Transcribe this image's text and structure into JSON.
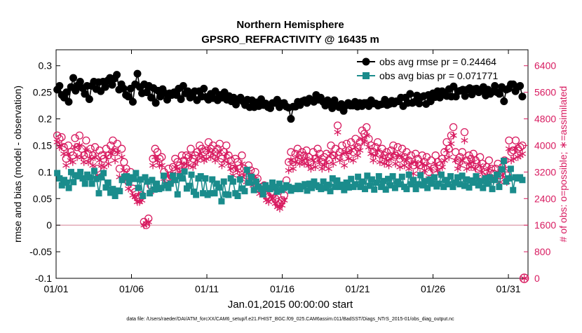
{
  "chart_data": {
    "type": "line",
    "title": "Northern Hemisphere",
    "subtitle": "GPSRO_REFRACTIVITY @ 16435 m",
    "xlabel": "Jan.01,2015 00:00:00 start",
    "ylabel_left": "rmse and bias (model - observation)",
    "ylabel_right": "# of obs: o=possible; ∗=assimilated",
    "footer": "data file: /Users/raeder/DAI/ATM_forcXX/CAM6_setup/f.e21.FHIST_BGC.f09_025.CAM6assim.011/BadSST/Diags_NTrS_2015-01/obs_diag_output.nc",
    "x_ticks": [
      "01/01",
      "01/06",
      "01/11",
      "01/16",
      "01/21",
      "01/26",
      "01/31"
    ],
    "y_left_ticks": [
      "-0.1",
      "-0.05",
      "0",
      "0.05",
      "0.1",
      "0.15",
      "0.2",
      "0.25",
      "0.3"
    ],
    "y_right_ticks": [
      "0",
      "800",
      "1600",
      "2400",
      "3200",
      "4000",
      "4800",
      "5600",
      "6400"
    ],
    "xlim_days": [
      0,
      31.3
    ],
    "ylim_left": [
      -0.1,
      0.33
    ],
    "ylim_right": [
      0,
      6880
    ],
    "grid": false,
    "legend_position": "top-right",
    "colors": {
      "rmse": "#000000",
      "bias": "#1a8c8c",
      "obs": "#d81b60",
      "zero_line": "#d98fa0"
    },
    "series": [
      {
        "name": "obs avg rmse pr = 0.24464",
        "axis": "left",
        "marker": "filled-circle",
        "values": [
          0.255,
          0.262,
          0.245,
          0.24,
          0.25,
          0.232,
          0.26,
          0.277,
          0.253,
          0.263,
          0.27,
          0.258,
          0.247,
          0.262,
          0.237,
          0.262,
          0.27,
          0.256,
          0.269,
          0.252,
          0.27,
          0.26,
          0.272,
          0.277,
          0.264,
          0.276,
          0.283,
          0.255,
          0.265,
          0.257,
          0.245,
          0.242,
          0.257,
          0.232,
          0.265,
          0.285,
          0.26,
          0.248,
          0.265,
          0.25,
          0.262,
          0.24,
          0.258,
          0.23,
          0.253,
          0.242,
          0.256,
          0.248,
          0.236,
          0.248,
          0.245,
          0.25,
          0.245,
          0.257,
          0.237,
          0.262,
          0.248,
          0.252,
          0.24,
          0.245,
          0.252,
          0.235,
          0.252,
          0.242,
          0.257,
          0.241,
          0.236,
          0.247,
          0.239,
          0.252,
          0.235,
          0.245,
          0.24,
          0.25,
          0.236,
          0.243,
          0.233,
          0.24,
          0.227,
          0.236,
          0.24,
          0.233,
          0.226,
          0.236,
          0.222,
          0.235,
          0.222,
          0.231,
          0.224,
          0.237,
          0.226,
          0.229,
          0.222,
          0.22,
          0.23,
          0.23,
          0.236,
          0.222,
          0.229,
          0.23,
          0.223,
          0.221,
          0.2,
          0.223,
          0.223,
          0.232,
          0.226,
          0.233,
          0.235,
          0.23,
          0.238,
          0.235,
          0.232,
          0.245,
          0.236,
          0.24,
          0.232,
          0.225,
          0.235,
          0.23,
          0.22,
          0.235,
          0.225,
          0.222,
          0.228,
          0.215,
          0.225,
          0.23,
          0.225,
          0.225,
          0.232,
          0.223,
          0.23,
          0.224,
          0.23,
          0.23,
          0.224,
          0.235,
          0.229,
          0.229,
          0.225,
          0.227,
          0.228,
          0.236,
          0.226,
          0.228,
          0.234,
          0.229,
          0.233,
          0.233,
          0.24,
          0.224,
          0.24,
          0.23,
          0.247,
          0.23,
          0.232,
          0.244,
          0.229,
          0.241,
          0.243,
          0.228,
          0.245,
          0.233,
          0.248,
          0.241,
          0.252,
          0.24,
          0.252,
          0.247,
          0.243,
          0.256,
          0.242,
          0.261,
          0.242,
          0.252,
          0.253,
          0.255,
          0.243,
          0.255,
          0.258,
          0.246,
          0.256,
          0.257,
          0.25,
          0.253,
          0.26,
          0.244,
          0.255,
          0.247,
          0.251,
          0.262,
          0.25,
          0.247,
          0.26,
          0.233,
          0.255,
          0.257,
          0.265,
          0.265,
          0.252,
          0.26,
          0.262,
          0.242
        ]
      },
      {
        "name": "obs avg bias pr = 0.071771",
        "axis": "left",
        "marker": "filled-square",
        "values": [
          0.098,
          0.088,
          0.075,
          0.085,
          0.08,
          0.07,
          0.1,
          0.081,
          0.094,
          0.092,
          0.1,
          0.088,
          0.078,
          0.095,
          0.09,
          0.078,
          0.102,
          0.087,
          0.06,
          0.09,
          0.098,
          0.071,
          0.08,
          0.061,
          0.068,
          0.055,
          0.065,
          0.064,
          0.085,
          0.091,
          0.092,
          0.08,
          0.09,
          0.087,
          0.098,
          0.07,
          0.086,
          0.055,
          0.09,
          0.082,
          0.06,
          0.085,
          0.067,
          0.078,
          0.068,
          0.07,
          0.093,
          0.075,
          0.07,
          0.078,
          0.093,
          0.085,
          0.058,
          0.092,
          0.088,
          0.101,
          0.069,
          0.074,
          0.095,
          0.063,
          0.057,
          0.088,
          0.092,
          0.06,
          0.088,
          0.057,
          0.06,
          0.086,
          0.06,
          0.078,
          0.071,
          0.045,
          0.082,
          0.058,
          0.057,
          0.088,
          0.082,
          0.06,
          0.055,
          0.086,
          0.069,
          0.064,
          0.104,
          0.08,
          0.091,
          0.066,
          0.082,
          0.072,
          0.068,
          0.058,
          0.075,
          0.07,
          0.068,
          0.08,
          0.072,
          0.063,
          0.078,
          0.066,
          0.07,
          0.075,
          0.072,
          0.065,
          0.07,
          0.068,
          0.074,
          0.068,
          0.073,
          0.077,
          0.065,
          0.078,
          0.07,
          0.082,
          0.075,
          0.072,
          0.068,
          0.082,
          0.07,
          0.076,
          0.064,
          0.088,
          0.072,
          0.084,
          0.072,
          0.076,
          0.066,
          0.08,
          0.071,
          0.087,
          0.072,
          0.077,
          0.091,
          0.072,
          0.082,
          0.068,
          0.093,
          0.074,
          0.086,
          0.067,
          0.08,
          0.092,
          0.072,
          0.083,
          0.067,
          0.087,
          0.075,
          0.092,
          0.07,
          0.082,
          0.077,
          0.091,
          0.072,
          0.068,
          0.095,
          0.077,
          0.085,
          0.068,
          0.077,
          0.094,
          0.075,
          0.083,
          0.07,
          0.086,
          0.078,
          0.09,
          0.073,
          0.078,
          0.095,
          0.072,
          0.085,
          0.077,
          0.092,
          0.072,
          0.08,
          0.09,
          0.077,
          0.093,
          0.074,
          0.086,
          0.071,
          0.084,
          0.08,
          0.092,
          0.075,
          0.083,
          0.07,
          0.088,
          0.078,
          0.09,
          0.068,
          0.085,
          0.095,
          0.072,
          0.105,
          0.121,
          0.082,
          0.088,
          0.106,
          0.066,
          0.09,
          0.088,
          0.09,
          0.085
        ]
      },
      {
        "name": "possible",
        "axis": "right",
        "marker": "open-circle",
        "values": [
          4300,
          4200,
          4250,
          3950,
          3600,
          4000,
          3800,
          3700,
          4220,
          3950,
          4300,
          3900,
          3700,
          4150,
          3750,
          3900,
          3700,
          3950,
          3300,
          3850,
          3700,
          3600,
          3900,
          3700,
          4000,
          4150,
          3800,
          4050,
          3300,
          3900,
          3500,
          3300,
          2900,
          3200,
          2700,
          2600,
          2450,
          2400,
          2500,
          1700,
          1600,
          1800,
          2800,
          3600,
          3900,
          3800,
          3600,
          3650,
          3200,
          3000,
          3300,
          3100,
          3350,
          3600,
          3500,
          3400,
          3700,
          3550,
          3700,
          3650,
          3900,
          3600,
          3700,
          3800,
          4000,
          3900,
          3800,
          3850,
          4100,
          3900,
          4000,
          3800,
          3900,
          4050,
          3600,
          3800,
          4000,
          3700,
          3550,
          3300,
          3600,
          3500,
          3300,
          3700,
          3300,
          3100,
          3400,
          3250,
          3000,
          3200,
          3000,
          2700,
          2750,
          2800,
          2500,
          2450,
          2600,
          2550,
          2400,
          2300,
          2250,
          2350,
          2500,
          2950,
          3500,
          3800,
          3500,
          3750,
          3900,
          3700,
          3800,
          3700,
          3850,
          3650,
          3500,
          3800,
          3600,
          3900,
          3750,
          3500,
          3650,
          3750,
          3550,
          4000,
          3700,
          3900,
          4600,
          3800,
          4000,
          3650,
          4050,
          3850,
          4100,
          3800,
          4200,
          3950,
          4100,
          4450,
          4350,
          4550,
          4200,
          4000,
          3800,
          3950,
          4100,
          3750,
          3900,
          3700,
          3800,
          3650,
          3850,
          4000,
          3700,
          3950,
          3600,
          3900,
          3650,
          3800,
          3550,
          3700,
          3400,
          3750,
          3600,
          3400,
          3700,
          3500,
          3650,
          3200,
          3550,
          3300,
          3700,
          3500,
          3400,
          3600,
          3800,
          4100,
          3900,
          4300,
          4550,
          3800,
          3550,
          3650,
          3800,
          4400,
          3550,
          3700,
          3600,
          3750,
          3550,
          3300,
          3650,
          3450,
          3200,
          3350,
          3550,
          3300,
          3150,
          3300,
          3450,
          3100,
          3350,
          3550,
          3100,
          4150,
          3800,
          3850,
          4150,
          3900,
          3950,
          4000
        ]
      },
      {
        "name": "assimilated",
        "axis": "right",
        "marker": "asterisk",
        "values": [
          4100,
          3950,
          4000,
          3750,
          3400,
          3750,
          3550,
          3500,
          3950,
          3650,
          4000,
          3650,
          3500,
          3850,
          3500,
          3600,
          3400,
          3650,
          3100,
          3550,
          3400,
          3350,
          3650,
          3450,
          3750,
          3850,
          3550,
          3800,
          3050,
          3650,
          3250,
          3100,
          2700,
          3000,
          2500,
          2450,
          2300,
          2300,
          2350,
          1600,
          1650,
          1700,
          2600,
          3400,
          3650,
          3550,
          3400,
          3400,
          3000,
          2800,
          3100,
          2900,
          3150,
          3350,
          3300,
          3200,
          3450,
          3300,
          3450,
          3400,
          3650,
          3350,
          3450,
          3550,
          3750,
          3650,
          3550,
          3600,
          3850,
          3650,
          3750,
          3550,
          3650,
          3800,
          3400,
          3550,
          3750,
          3450,
          3300,
          3100,
          3350,
          3250,
          3100,
          3450,
          3100,
          2900,
          3200,
          3050,
          2800,
          3000,
          2800,
          2550,
          2600,
          2650,
          2350,
          2300,
          2450,
          2400,
          2250,
          2150,
          2100,
          2200,
          2350,
          2750,
          3250,
          3550,
          3300,
          3500,
          3650,
          3450,
          3550,
          3450,
          3600,
          3400,
          3300,
          3550,
          3350,
          3650,
          3500,
          3300,
          3400,
          3500,
          3300,
          3750,
          3450,
          3650,
          4400,
          3550,
          3750,
          3400,
          3800,
          3600,
          3850,
          3550,
          3950,
          3700,
          3850,
          4200,
          4100,
          4300,
          3950,
          3750,
          3550,
          3700,
          3850,
          3500,
          3650,
          3450,
          3550,
          3400,
          3600,
          3750,
          3450,
          3700,
          3350,
          3650,
          3400,
          3550,
          3300,
          3450,
          3150,
          3500,
          3350,
          3150,
          3450,
          3250,
          3400,
          3000,
          3300,
          3050,
          3450,
          3250,
          3150,
          3350,
          3550,
          3850,
          3650,
          4050,
          4300,
          3550,
          3300,
          3400,
          3550,
          4150,
          3300,
          3450,
          3350,
          3500,
          3300,
          3050,
          3400,
          3200,
          3000,
          3100,
          3300,
          3050,
          2950,
          3050,
          3200,
          2900,
          3100,
          3300,
          2900,
          3900,
          3550,
          3600,
          3900,
          3650,
          3700,
          3750
        ]
      }
    ],
    "final_point_obs_count_at_x_axis": 0
  }
}
